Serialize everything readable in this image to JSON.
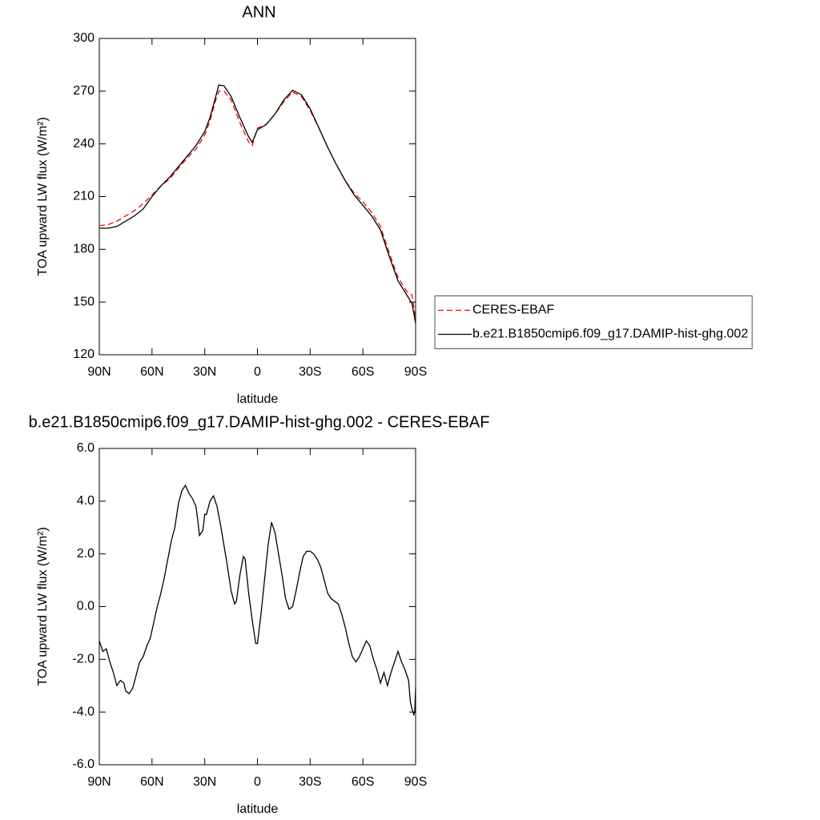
{
  "chart_data": [
    {
      "type": "line",
      "title": "ANN",
      "xlabel": "latitude",
      "ylabel": "TOA upward LW flux (W/m²)",
      "x": [
        90,
        85,
        80,
        75,
        70,
        65,
        60,
        55,
        50,
        45,
        40,
        35,
        30,
        27,
        24,
        22,
        19,
        15,
        10,
        5,
        3,
        0,
        -5,
        -10,
        -15,
        -20,
        -25,
        -30,
        -35,
        -40,
        -45,
        -50,
        -55,
        -60,
        -65,
        -70,
        -75,
        -80,
        -85,
        -88,
        -90
      ],
      "series": [
        {
          "name": "CERES-EBAF",
          "color": "#ff0000",
          "style": "dashed",
          "values": [
            193.5,
            194,
            196,
            199,
            202,
            206,
            211,
            216,
            220,
            226,
            232,
            237,
            245,
            253,
            264,
            270,
            270,
            265,
            252,
            241,
            239,
            249,
            251,
            257,
            264,
            269.5,
            267,
            259,
            249,
            238,
            228,
            219,
            212,
            207,
            201,
            193,
            178,
            164,
            156,
            154,
            140
          ]
        },
        {
          "name": "b.e21.B1850cmip6.f09_g17.DAMIP-hist-ghg.002",
          "color": "#000000",
          "style": "solid",
          "values": [
            192,
            192,
            193,
            196,
            199,
            203,
            210,
            216,
            221,
            227,
            233,
            239,
            247,
            255,
            266,
            273.5,
            273,
            267,
            255,
            244,
            241,
            248,
            251,
            257,
            265,
            270.5,
            268,
            260,
            249,
            238,
            228,
            219,
            211,
            205,
            199,
            191,
            176,
            162,
            154,
            149,
            138
          ]
        }
      ],
      "xlim": [
        90,
        -90
      ],
      "xticks": [
        {
          "value": 90,
          "label": "90N"
        },
        {
          "value": 60,
          "label": "60N"
        },
        {
          "value": 30,
          "label": "30N"
        },
        0,
        {
          "value": -30,
          "label": "30S"
        },
        {
          "value": -60,
          "label": "60S"
        },
        {
          "value": -90,
          "label": "90S"
        }
      ],
      "ylim": [
        120,
        300
      ],
      "yticks": [
        120,
        150,
        180,
        210,
        240,
        270,
        300
      ],
      "legend": "right"
    },
    {
      "type": "line",
      "title": "b.e21.B1850cmip6.f09_g17.DAMIP-hist-ghg.002 - CERES-EBAF",
      "xlabel": "latitude",
      "ylabel": "TOA upward LW flux (W/m²)",
      "x": [
        90,
        88,
        86,
        84,
        82,
        80,
        78,
        76,
        75,
        73,
        71,
        69,
        67,
        65,
        63,
        61,
        59,
        57,
        55,
        53,
        51,
        49,
        47,
        45,
        43,
        41,
        39,
        37,
        35,
        34,
        33,
        31,
        30,
        29,
        27,
        25,
        23,
        21,
        19,
        17,
        15,
        13,
        12,
        10,
        8,
        7,
        5,
        3,
        1,
        0,
        -2,
        -4,
        -6,
        -8,
        -10,
        -12,
        -14,
        -16,
        -18,
        -20,
        -22,
        -24,
        -26,
        -28,
        -30,
        -32,
        -34,
        -36,
        -38,
        -40,
        -42,
        -44,
        -46,
        -48,
        -50,
        -52,
        -54,
        -56,
        -58,
        -60,
        -62,
        -64,
        -66,
        -68,
        -70,
        -72,
        -74,
        -76,
        -78,
        -80,
        -82,
        -84,
        -86,
        -87,
        -88,
        -89,
        -89.5,
        -90
      ],
      "values": [
        -1.3,
        -1.7,
        -1.6,
        -2.1,
        -2.5,
        -3.0,
        -2.8,
        -2.9,
        -3.2,
        -3.3,
        -3.1,
        -2.6,
        -2.1,
        -1.9,
        -1.5,
        -1.2,
        -0.6,
        0.0,
        0.5,
        1.1,
        1.8,
        2.5,
        3.0,
        3.9,
        4.4,
        4.6,
        4.3,
        4.1,
        3.8,
        3.3,
        2.7,
        2.9,
        3.5,
        3.5,
        4.0,
        4.2,
        3.8,
        3.1,
        2.3,
        1.5,
        0.6,
        0.1,
        0.2,
        1.2,
        1.9,
        1.8,
        0.5,
        -0.5,
        -1.4,
        -1.4,
        -0.3,
        1.0,
        2.3,
        3.2,
        2.8,
        2.0,
        1.2,
        0.3,
        -0.1,
        0.0,
        0.6,
        1.3,
        1.9,
        2.1,
        2.1,
        2.0,
        1.8,
        1.5,
        1.0,
        0.5,
        0.3,
        0.2,
        0.1,
        -0.3,
        -0.8,
        -1.4,
        -1.9,
        -2.1,
        -1.9,
        -1.6,
        -1.3,
        -1.5,
        -2.0,
        -2.4,
        -2.9,
        -2.5,
        -3.0,
        -2.5,
        -2.1,
        -1.7,
        -2.1,
        -2.4,
        -2.8,
        -3.6,
        -3.9,
        -4.1,
        -4.0,
        -3.1
      ],
      "color": "#000000",
      "xlim": [
        90,
        -90
      ],
      "xticks": [
        {
          "value": 90,
          "label": "90N"
        },
        {
          "value": 60,
          "label": "60N"
        },
        {
          "value": 30,
          "label": "30N"
        },
        0,
        {
          "value": -30,
          "label": "30S"
        },
        {
          "value": -60,
          "label": "60S"
        },
        {
          "value": -90,
          "label": "90S"
        }
      ],
      "ylim": [
        -6,
        6
      ],
      "yticks": [
        {
          "value": -6,
          "label": "-6.0"
        },
        {
          "value": -4,
          "label": "-4.0"
        },
        {
          "value": -2,
          "label": "-2.0"
        },
        {
          "value": 0,
          "label": "0.0"
        },
        {
          "value": 2,
          "label": "2.0"
        },
        {
          "value": 4,
          "label": "4.0"
        },
        {
          "value": 6,
          "label": "6.0"
        }
      ]
    }
  ]
}
